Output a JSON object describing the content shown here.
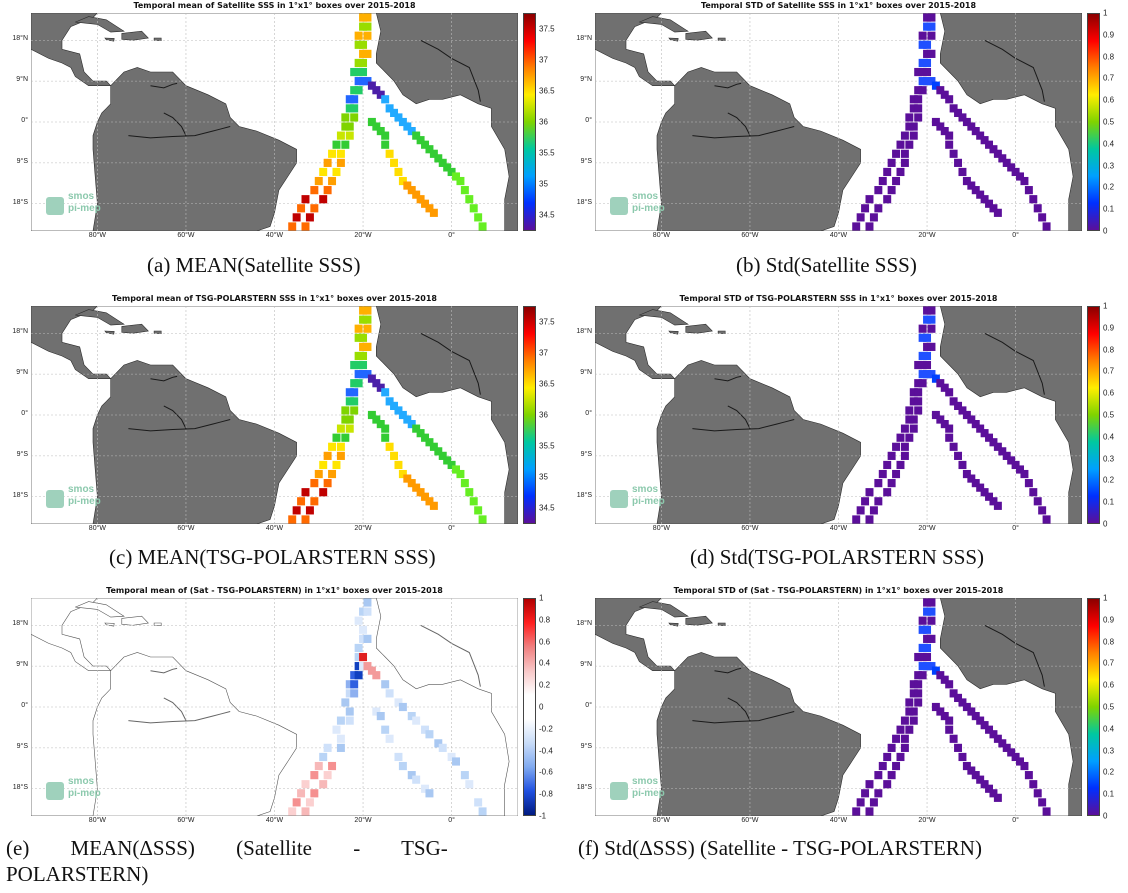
{
  "panels": [
    {
      "id": "a",
      "title": "Temporal mean of Satellite SSS in 1°x1° boxes over 2015-2018",
      "caption": "(a) MEAN(Satellite SSS)",
      "cbar": [
        "37.5",
        "37",
        "36.5",
        "36",
        "35.5",
        "35",
        "34.5"
      ],
      "kind": "mean_sss",
      "land_visible": true
    },
    {
      "id": "b",
      "title": "Temporal STD of Satellite SSS in 1°x1° boxes over 2015-2018",
      "caption": "(b) Std(Satellite SSS)",
      "cbar": [
        "1",
        "0.9",
        "0.8",
        "0.7",
        "0.6",
        "0.5",
        "0.4",
        "0.3",
        "0.2",
        "0.1",
        "0"
      ],
      "kind": "std",
      "land_visible": true
    },
    {
      "id": "c",
      "title": "Temporal mean of TSG-POLARSTERN SSS in 1°x1° boxes over 2015-2018",
      "caption": "(c) MEAN(TSG-POLARSTERN SSS)",
      "cbar": [
        "37.5",
        "37",
        "36.5",
        "36",
        "35.5",
        "35",
        "34.5"
      ],
      "kind": "mean_sss",
      "land_visible": true
    },
    {
      "id": "d",
      "title": "Temporal STD of TSG-POLARSTERN SSS in 1°x1° boxes over 2015-2018",
      "caption": "(d) Std(TSG-POLARSTERN SSS)",
      "cbar": [
        "1",
        "0.9",
        "0.8",
        "0.7",
        "0.6",
        "0.5",
        "0.4",
        "0.3",
        "0.2",
        "0.1",
        "0"
      ],
      "kind": "std",
      "land_visible": true
    },
    {
      "id": "e",
      "title": "Temporal mean of (Sat - TSG-POLARSTERN) in 1°x1° boxes over 2015-2018",
      "caption_line1": "(e) MEAN(ΔSSS) (Satellite - TSG-",
      "caption_line2": "POLARSTERN)",
      "cbar": [
        "1",
        "0.8",
        "0.6",
        "0.4",
        "0.2",
        "0",
        "-0.2",
        "-0.4",
        "-0.6",
        "-0.8",
        "-1"
      ],
      "kind": "diff",
      "land_visible": false
    },
    {
      "id": "f",
      "title": "Temporal STD of (Sat - TSG-POLARSTERN) in 1°x1° boxes over 2015-2018",
      "caption": "(f) Std(ΔSSS) (Satellite - TSG-POLARSTERN)",
      "cbar": [
        "1",
        "0.9",
        "0.8",
        "0.7",
        "0.6",
        "0.5",
        "0.4",
        "0.3",
        "0.2",
        "0.1",
        "0"
      ],
      "kind": "std",
      "land_visible": true
    }
  ],
  "lat_labels": [
    "18°N",
    "9°N",
    "0°",
    "9°S",
    "18°S"
  ],
  "lon_labels": [
    "80°W",
    "60°W",
    "40°W",
    "20°W",
    "0°"
  ],
  "logo": {
    "line1": "smos",
    "line2": "pi-mep"
  },
  "colors": {
    "land": "#707070",
    "ocean": "#ffffff",
    "grid": "#bbbbbb",
    "std_low": "#5b0f9a",
    "logo": "#8cc9ad"
  }
}
